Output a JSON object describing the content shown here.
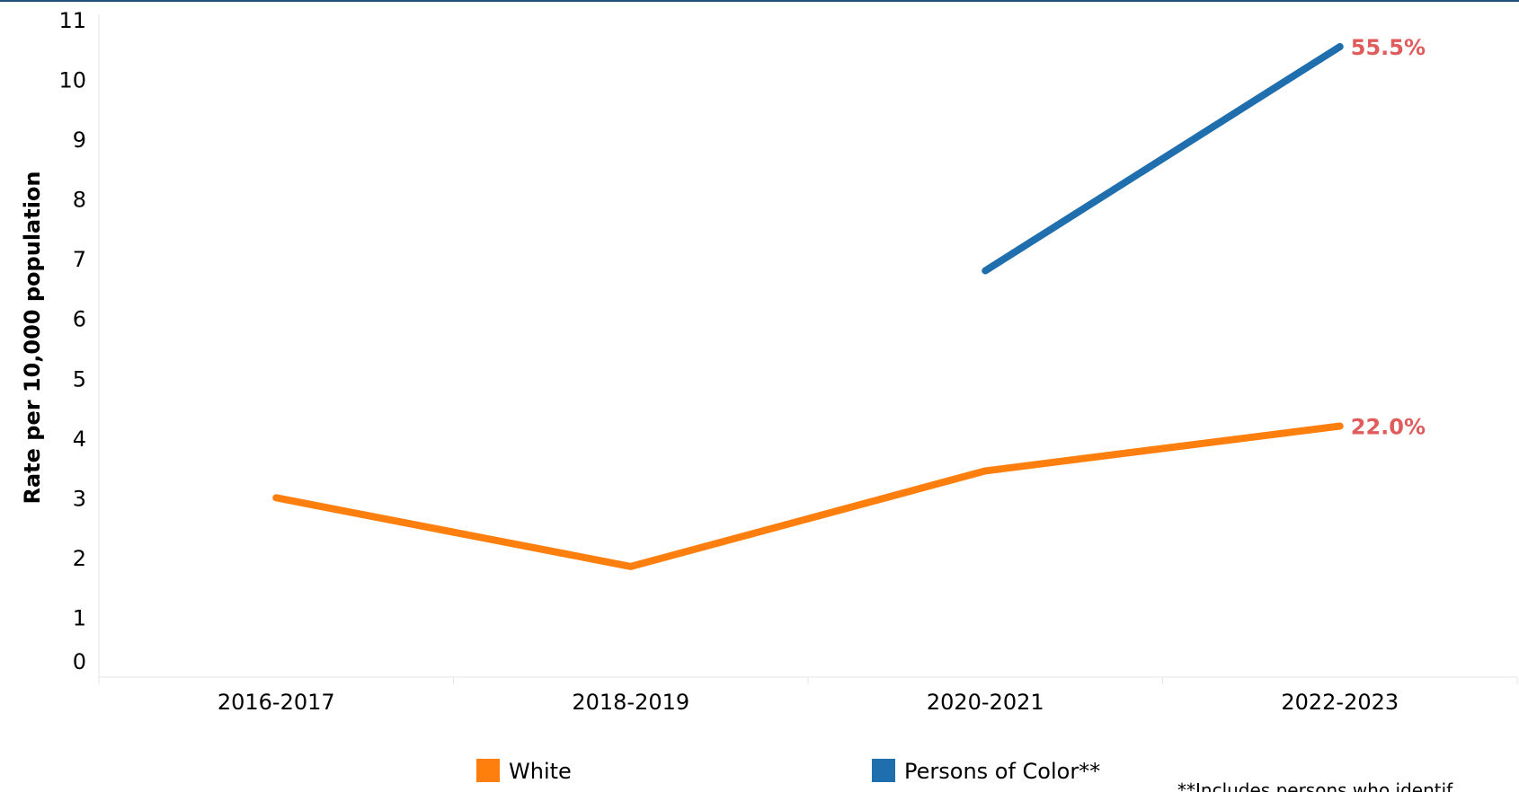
{
  "chart_data": {
    "type": "line",
    "title": "",
    "xlabel": "",
    "ylabel": "Rate per 10,000 population",
    "categories": [
      "2016-2017",
      "2018-2019",
      "2020-2021",
      "2022-2023"
    ],
    "ylim": [
      0,
      11
    ],
    "yticks": [
      "0",
      "1",
      "2",
      "3",
      "4",
      "5",
      "6",
      "7",
      "8",
      "9",
      "10",
      "11"
    ],
    "grid": false,
    "legend_position": "bottom",
    "series": [
      {
        "name": "White",
        "color": "#ff7f0e",
        "values": [
          3.0,
          1.85,
          3.45,
          4.2
        ],
        "end_label": "22.0%"
      },
      {
        "name": "Persons of Color**",
        "color": "#1f6fae",
        "values": [
          null,
          null,
          6.8,
          10.55
        ],
        "end_label": "55.5%"
      }
    ],
    "annotation_color": "#e05c5c",
    "footnote": "**Includes persons who identif"
  }
}
